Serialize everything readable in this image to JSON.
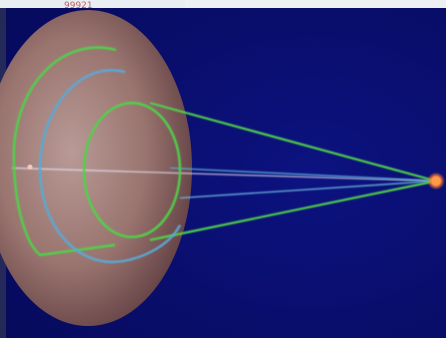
{
  "caption_fragment": "99921",
  "colors": {
    "space": "#0a0e6e",
    "space_deep": "#050850",
    "planet_light": "#ab8783",
    "planet_dark": "#5b3a3e",
    "green_ring": "#4fd24a",
    "cyan_ring": "#5aa9d6",
    "axis_line": "#e8e0f0",
    "point": "#ff8a3a",
    "top_strip": "#eef1f4"
  },
  "diagram": {
    "objects": [
      "planet",
      "outer-green-arc",
      "cyan-arc",
      "inner-green-arc",
      "convergence-point"
    ]
  }
}
